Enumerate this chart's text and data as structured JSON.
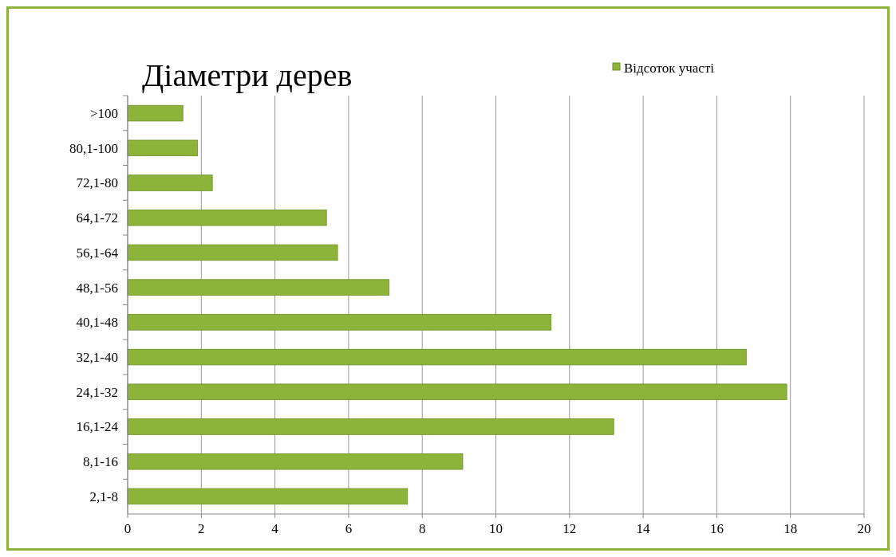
{
  "chart_data": {
    "type": "bar",
    "orientation": "horizontal",
    "title": "Діаметри дерев",
    "categories": [
      ">100",
      "80,1-100",
      "72,1-80",
      "64,1-72",
      "56,1-64",
      "48,1-56",
      "40,1-48",
      "32,1-40",
      "24,1-32",
      "16,1-24",
      "8,1-16",
      "2,1-8"
    ],
    "series": [
      {
        "name": "Відсоток участі",
        "color": "#8db33a",
        "values": [
          1.5,
          1.9,
          2.3,
          5.4,
          5.7,
          7.1,
          11.5,
          16.8,
          17.9,
          13.2,
          9.1,
          7.6
        ]
      }
    ],
    "xlim": [
      0,
      20
    ],
    "xticks": [
      0,
      2,
      4,
      6,
      8,
      10,
      12,
      14,
      16,
      18,
      20
    ],
    "grid": "x",
    "legend": "top right"
  }
}
